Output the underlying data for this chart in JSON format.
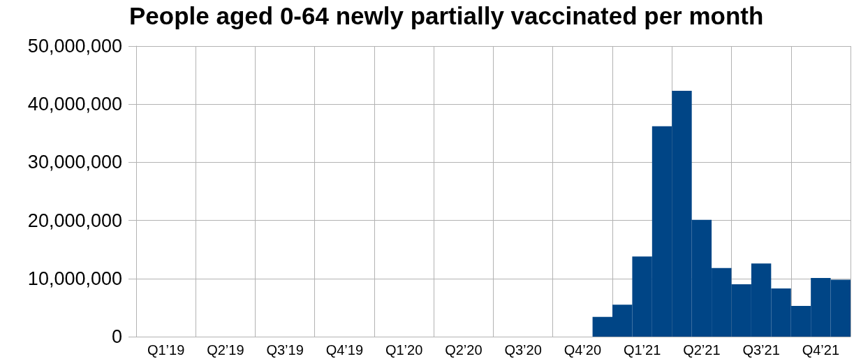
{
  "chart_data": {
    "type": "bar",
    "title": "People aged 0-64 newly partially vaccinated per month",
    "categories": [
      null,
      "Q1’19",
      null,
      null,
      "Q2’19",
      null,
      null,
      "Q3’19",
      null,
      null,
      "Q4’19",
      null,
      null,
      "Q1’20",
      null,
      null,
      "Q2’20",
      null,
      null,
      "Q3’20",
      null,
      null,
      "Q4’20",
      null,
      null,
      "Q1’21",
      null,
      null,
      "Q2’21",
      null,
      null,
      "Q3’21",
      null,
      null,
      "Q4’21",
      null
    ],
    "values": [
      null,
      null,
      null,
      null,
      null,
      null,
      null,
      null,
      null,
      null,
      null,
      null,
      null,
      null,
      null,
      null,
      null,
      null,
      null,
      null,
      null,
      null,
      null,
      3400000,
      5500000,
      13800000,
      36200000,
      42300000,
      20100000,
      11800000,
      9000000,
      12600000,
      8300000,
      5300000,
      10100000,
      9800000
    ],
    "color": "#004586",
    "ylim": [
      0,
      50000000
    ],
    "yticks": [
      {
        "value": 0,
        "label": "0"
      },
      {
        "value": 10000000,
        "label": "10,000,000"
      },
      {
        "value": 20000000,
        "label": "20,000,000"
      },
      {
        "value": 30000000,
        "label": "30,000,000"
      },
      {
        "value": 40000000,
        "label": "40,000,000"
      },
      {
        "value": 50000000,
        "label": "50,000,000"
      }
    ],
    "grid": true
  }
}
